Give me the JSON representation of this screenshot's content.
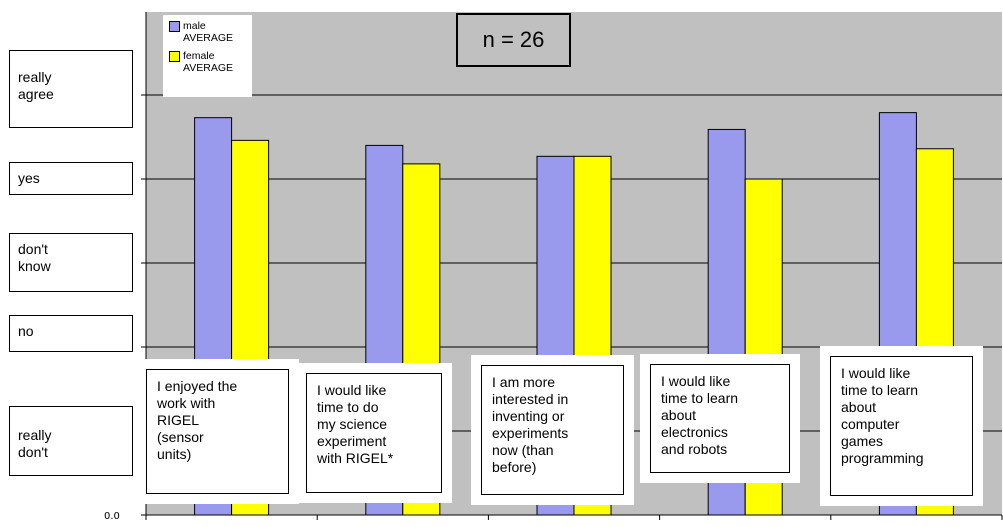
{
  "chart_data": {
    "type": "bar",
    "categories": [
      "I enjoyed the\nwork with\nRIGEL\n(sensor\nunits)",
      "I would like\ntime to do\nmy science\nexperiment\nwith RIGEL*",
      "I am more\ninterested in\ninventing or\nexperiments\nnow (than\nbefore)",
      "I would like\ntime to learn\nabout\nelectronics\nand robots",
      "I would like\ntime to learn\nabout\ncomputer\ngames\nprogramming"
    ],
    "series": [
      {
        "name": "male\nAVERAGE",
        "values": [
          4.73,
          4.4,
          4.27,
          4.59,
          4.79
        ]
      },
      {
        "name": "female\nAVERAGE",
        "values": [
          4.46,
          4.18,
          4.27,
          4.0,
          4.36
        ]
      }
    ],
    "ylim": [
      0,
      6
    ],
    "yticks": [
      "0.0",
      "1.0",
      "2.0",
      "3.0",
      "4.0",
      "5.0"
    ],
    "grid": true,
    "legend_position": "top-left",
    "annotation": "n = 26",
    "scale_labels": [
      "really\nagree",
      "yes",
      "don't\nknow",
      "no",
      "really\ndon't"
    ],
    "colors": {
      "male": "#9999ee",
      "female": "#ffff00",
      "plot_bg": "#c0c0c0"
    }
  }
}
